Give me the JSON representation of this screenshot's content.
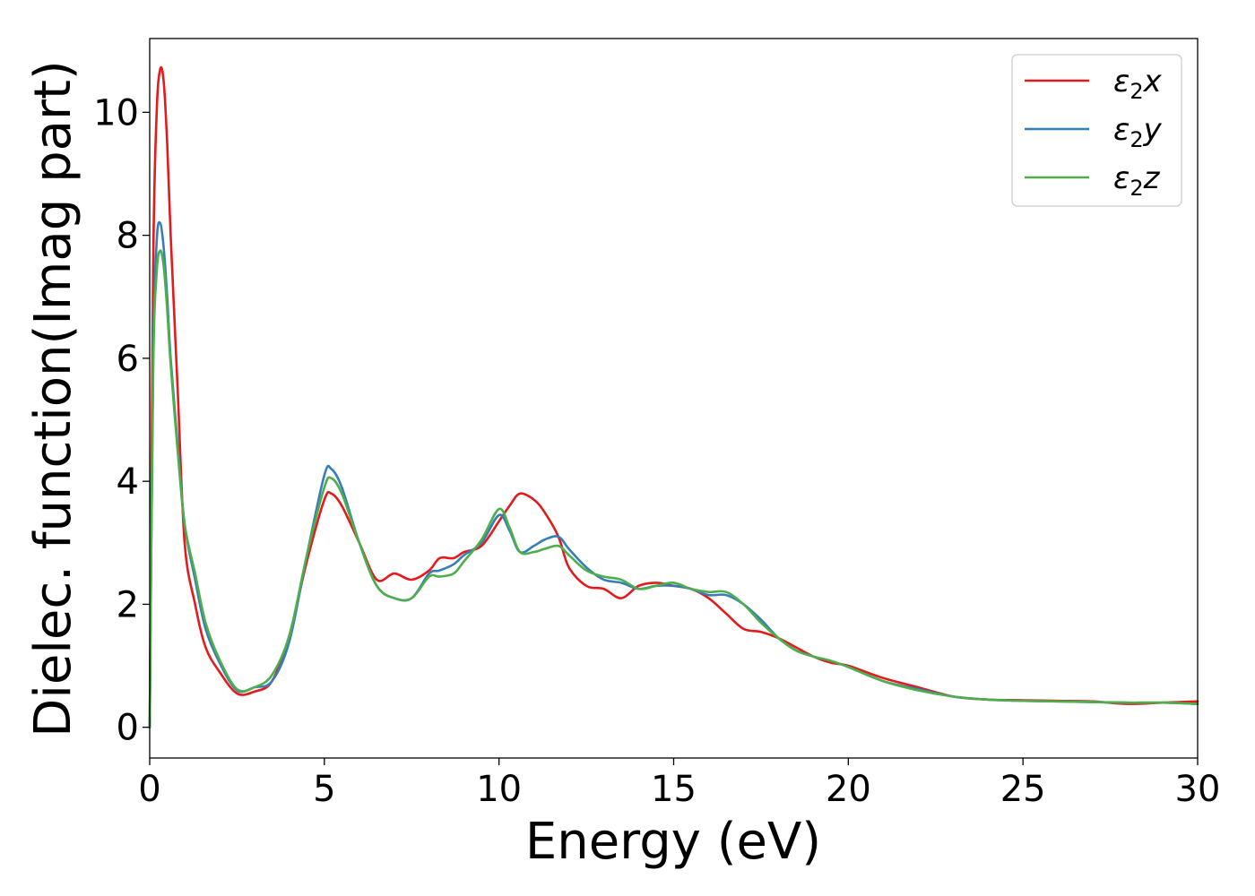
{
  "chart_data": {
    "type": "line",
    "title": "",
    "xlabel": "Energy (eV)",
    "ylabel": "Dielec. function(Imag part)",
    "xlim": [
      0,
      30
    ],
    "ylim": [
      -0.5,
      11.2
    ],
    "xticks": [
      0,
      5,
      10,
      15,
      20,
      25,
      30
    ],
    "xtick_labels": [
      "0",
      "5",
      "10",
      "15",
      "20",
      "25",
      "30"
    ],
    "yticks": [
      0,
      2,
      4,
      6,
      8,
      10
    ],
    "ytick_labels": [
      "0",
      "2",
      "4",
      "6",
      "8",
      "10"
    ],
    "grid": false,
    "legend_position": "top-right",
    "series": [
      {
        "name": "ε2x",
        "name_base": "ε",
        "name_sub": "2",
        "name_var": "x",
        "color": "#e41a1c",
        "x": [
          0,
          0.1,
          0.2,
          0.3,
          0.4,
          0.5,
          0.6,
          0.8,
          1.0,
          1.3,
          1.6,
          2.0,
          2.5,
          3.0,
          3.5,
          4.0,
          4.5,
          5.0,
          5.2,
          5.5,
          6.0,
          6.5,
          7.0,
          7.5,
          8.0,
          8.3,
          8.7,
          9.0,
          9.5,
          10.0,
          10.3,
          10.6,
          11.0,
          11.3,
          11.7,
          12.0,
          12.5,
          13.0,
          13.5,
          14.0,
          14.5,
          15.0,
          15.5,
          16.0,
          16.5,
          17.0,
          17.5,
          18.0,
          18.5,
          19.0,
          19.5,
          20.0,
          21.0,
          22.0,
          23.0,
          24.0,
          25.0,
          26.0,
          27.0,
          28.0,
          29.0,
          30.0
        ],
        "y": [
          0.0,
          7.5,
          10.0,
          10.7,
          10.5,
          9.5,
          8.0,
          5.5,
          3.0,
          2.0,
          1.3,
          0.9,
          0.55,
          0.58,
          0.75,
          1.5,
          2.7,
          3.7,
          3.8,
          3.6,
          3.0,
          2.4,
          2.5,
          2.4,
          2.55,
          2.75,
          2.75,
          2.85,
          2.95,
          3.35,
          3.6,
          3.8,
          3.7,
          3.5,
          3.1,
          2.6,
          2.3,
          2.25,
          2.1,
          2.3,
          2.35,
          2.3,
          2.25,
          2.1,
          1.85,
          1.6,
          1.55,
          1.45,
          1.3,
          1.15,
          1.05,
          1.0,
          0.8,
          0.65,
          0.5,
          0.45,
          0.44,
          0.43,
          0.42,
          0.38,
          0.4,
          0.42
        ]
      },
      {
        "name": "ε2y",
        "name_base": "ε",
        "name_sub": "2",
        "name_var": "y",
        "color": "#377eb8",
        "x": [
          0,
          0.1,
          0.2,
          0.3,
          0.4,
          0.5,
          0.6,
          0.8,
          1.0,
          1.3,
          1.6,
          2.0,
          2.5,
          3.0,
          3.5,
          4.0,
          4.5,
          5.0,
          5.2,
          5.5,
          6.0,
          6.5,
          7.0,
          7.5,
          8.0,
          8.3,
          8.7,
          9.0,
          9.5,
          10.0,
          10.3,
          10.6,
          11.0,
          11.3,
          11.7,
          12.0,
          12.5,
          13.0,
          13.5,
          14.0,
          14.5,
          15.0,
          15.5,
          16.0,
          16.5,
          17.0,
          17.5,
          18.0,
          18.5,
          19.0,
          19.5,
          20.0,
          21.0,
          22.0,
          23.0,
          24.0,
          25.0,
          26.0,
          27.0,
          28.0,
          29.0,
          30.0
        ],
        "y": [
          0.0,
          6.0,
          7.9,
          8.2,
          7.8,
          7.0,
          6.0,
          4.6,
          3.3,
          2.4,
          1.6,
          1.05,
          0.6,
          0.65,
          0.75,
          1.4,
          2.8,
          4.1,
          4.2,
          3.9,
          3.0,
          2.3,
          2.1,
          2.1,
          2.5,
          2.55,
          2.65,
          2.8,
          3.0,
          3.45,
          3.2,
          2.85,
          2.95,
          3.05,
          3.1,
          2.9,
          2.6,
          2.4,
          2.35,
          2.25,
          2.3,
          2.3,
          2.25,
          2.15,
          2.15,
          2.0,
          1.75,
          1.45,
          1.25,
          1.15,
          1.08,
          0.98,
          0.75,
          0.62,
          0.5,
          0.45,
          0.43,
          0.42,
          0.41,
          0.4,
          0.4,
          0.38
        ]
      },
      {
        "name": "ε2z",
        "name_base": "ε",
        "name_sub": "2",
        "name_var": "z",
        "color": "#4daf4a",
        "x": [
          0,
          0.1,
          0.2,
          0.3,
          0.4,
          0.5,
          0.6,
          0.8,
          1.0,
          1.3,
          1.6,
          2.0,
          2.5,
          3.0,
          3.5,
          4.0,
          4.5,
          5.0,
          5.2,
          5.5,
          6.0,
          6.5,
          7.0,
          7.5,
          8.0,
          8.3,
          8.7,
          9.0,
          9.5,
          10.0,
          10.3,
          10.6,
          11.0,
          11.3,
          11.7,
          12.0,
          12.5,
          13.0,
          13.5,
          14.0,
          14.5,
          15.0,
          15.5,
          16.0,
          16.5,
          17.0,
          17.5,
          18.0,
          18.5,
          19.0,
          19.5,
          20.0,
          21.0,
          22.0,
          23.0,
          24.0,
          25.0,
          26.0,
          27.0,
          28.0,
          29.0,
          30.0
        ],
        "y": [
          0.0,
          5.8,
          7.4,
          7.75,
          7.5,
          6.8,
          5.9,
          4.5,
          3.3,
          2.5,
          1.7,
          1.1,
          0.62,
          0.65,
          0.85,
          1.5,
          2.8,
          3.9,
          4.05,
          3.8,
          3.0,
          2.3,
          2.1,
          2.1,
          2.45,
          2.45,
          2.5,
          2.7,
          3.05,
          3.55,
          3.25,
          2.85,
          2.85,
          2.9,
          2.95,
          2.8,
          2.55,
          2.45,
          2.4,
          2.25,
          2.3,
          2.35,
          2.25,
          2.2,
          2.2,
          2.0,
          1.7,
          1.45,
          1.25,
          1.15,
          1.08,
          0.98,
          0.75,
          0.6,
          0.5,
          0.45,
          0.43,
          0.42,
          0.41,
          0.4,
          0.4,
          0.38
        ]
      }
    ]
  }
}
